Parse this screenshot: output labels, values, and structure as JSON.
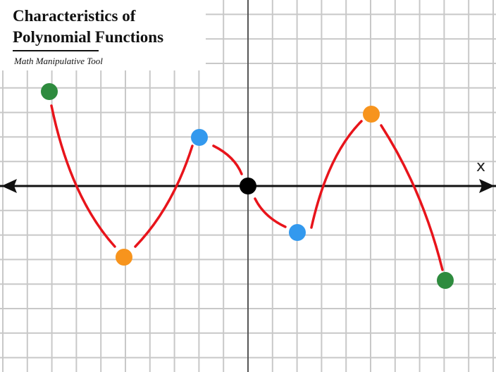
{
  "header": {
    "title_lines": [
      "Characteristics of",
      "Polynomial Functions"
    ],
    "subtitle": "Math Manipulative Tool"
  },
  "axes": {
    "x_label": "x"
  }
}
